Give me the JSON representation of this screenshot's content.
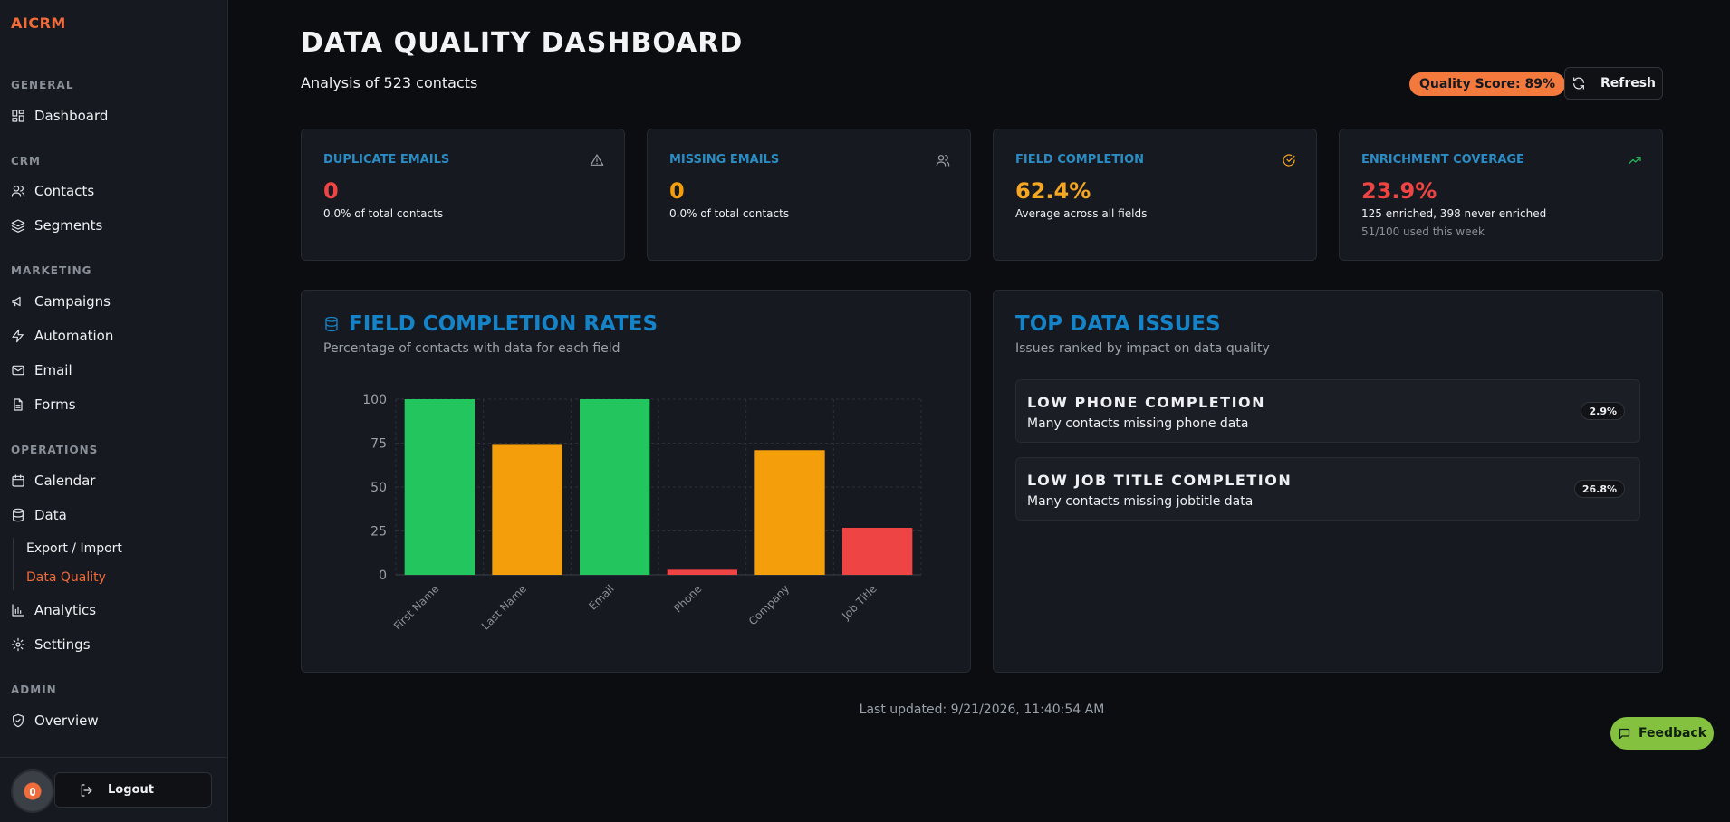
{
  "app": {
    "brand": "AICRM"
  },
  "sidebar": {
    "sections": {
      "general": "GENERAL",
      "crm": "CRM",
      "marketing": "MARKETING",
      "operations": "OPERATIONS",
      "admin": "ADMIN"
    },
    "items": {
      "dashboard": "Dashboard",
      "contacts": "Contacts",
      "segments": "Segments",
      "campaigns": "Campaigns",
      "automation": "Automation",
      "email": "Email",
      "forms": "Forms",
      "calendar": "Calendar",
      "data": "Data",
      "export_import": "Export / Import",
      "data_quality": "Data Quality",
      "analytics": "Analytics",
      "settings": "Settings",
      "overview": "Overview"
    },
    "active_item": "Data Quality",
    "logout": "Logout"
  },
  "header": {
    "title": "DATA QUALITY DASHBOARD",
    "subtitle": "Analysis of 523 contacts",
    "quality_score": "Quality Score: 89%",
    "refresh": "Refresh"
  },
  "stats": [
    {
      "title": "DUPLICATE EMAILS",
      "value": "0",
      "desc": "0.0% of total contacts",
      "icon": "alert-triangle-icon",
      "value_color": "#ef4444",
      "icon_color": "#9aa1ab"
    },
    {
      "title": "MISSING EMAILS",
      "value": "0",
      "desc": "0.0% of total contacts",
      "icon": "users-icon",
      "value_color": "#f59e0b",
      "icon_color": "#9aa1ab"
    },
    {
      "title": "FIELD COMPLETION",
      "value": "62.4%",
      "desc": "Average across all fields",
      "icon": "check-circle-icon",
      "value_color": "#f5a623",
      "icon_color": "#f5a623"
    },
    {
      "title": "ENRICHMENT COVERAGE",
      "value": "23.9%",
      "desc": "125 enriched, 398 never enriched",
      "extra": "51/100 used this week",
      "icon": "trending-up-icon",
      "value_color": "#ef4444",
      "icon_color": "#22c55e"
    }
  ],
  "chart_panel": {
    "title": "FIELD COMPLETION RATES",
    "subtitle": "Percentage of contacts with data for each field"
  },
  "chart_data": {
    "type": "bar",
    "categories": [
      "First Name",
      "Last Name",
      "Email",
      "Phone",
      "Company",
      "Job Title"
    ],
    "values": [
      100,
      74,
      100,
      2.9,
      71,
      26.8
    ],
    "colors": [
      "#22c55e",
      "#f59e0b",
      "#22c55e",
      "#ef4444",
      "#f59e0b",
      "#ef4444"
    ],
    "yticks": [
      0,
      25,
      50,
      75,
      100
    ],
    "ylim": [
      0,
      100
    ],
    "grid": true
  },
  "issues_panel": {
    "title": "TOP DATA ISSUES",
    "subtitle": "Issues ranked by impact on data quality",
    "issues": [
      {
        "title": "LOW PHONE COMPLETION",
        "desc": "Many contacts missing phone data",
        "badge": "2.9%"
      },
      {
        "title": "LOW JOB TITLE COMPLETION",
        "desc": "Many contacts missing jobtitle data",
        "badge": "26.8%"
      }
    ]
  },
  "footer": {
    "last_updated": "Last updated: 9/21/2026, 11:40:54 AM"
  },
  "feedback": "Feedback",
  "colors": {
    "accent": "#f26b3a",
    "blue": "#1583c7",
    "green": "#22c55e",
    "amber": "#f59e0b",
    "red": "#ef4444",
    "feedback": "#84c13f"
  }
}
